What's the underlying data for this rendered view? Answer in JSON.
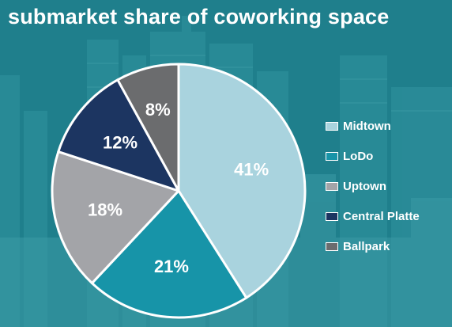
{
  "title": "submarket share of coworking space",
  "colors": {
    "background": "#1f7f8c",
    "slice_border": "#ffffff",
    "label_text": "#ffffff"
  },
  "chart_data": {
    "type": "pie",
    "title": "submarket share of coworking space",
    "legend_position": "right",
    "slices": [
      {
        "name": "Midtown",
        "value": 41,
        "label": "41%",
        "color": "#a9d3de"
      },
      {
        "name": "LoDo",
        "value": 21,
        "label": "21%",
        "color": "#1794a8"
      },
      {
        "name": "Uptown",
        "value": 18,
        "label": "18%",
        "color": "#a3a4a8"
      },
      {
        "name": "Central Platte",
        "value": 12,
        "label": "12%",
        "color": "#1c3561"
      },
      {
        "name": "Ballpark",
        "value": 8,
        "label": "8%",
        "color": "#6b6c6e"
      }
    ]
  },
  "legend": {
    "items": [
      {
        "label": "Midtown",
        "color": "#a9d3de"
      },
      {
        "label": "LoDo",
        "color": "#1794a8"
      },
      {
        "label": "Uptown",
        "color": "#a3a4a8"
      },
      {
        "label": "Central Platte",
        "color": "#1c3561"
      },
      {
        "label": "Ballpark",
        "color": "#6b6c6e"
      }
    ]
  }
}
